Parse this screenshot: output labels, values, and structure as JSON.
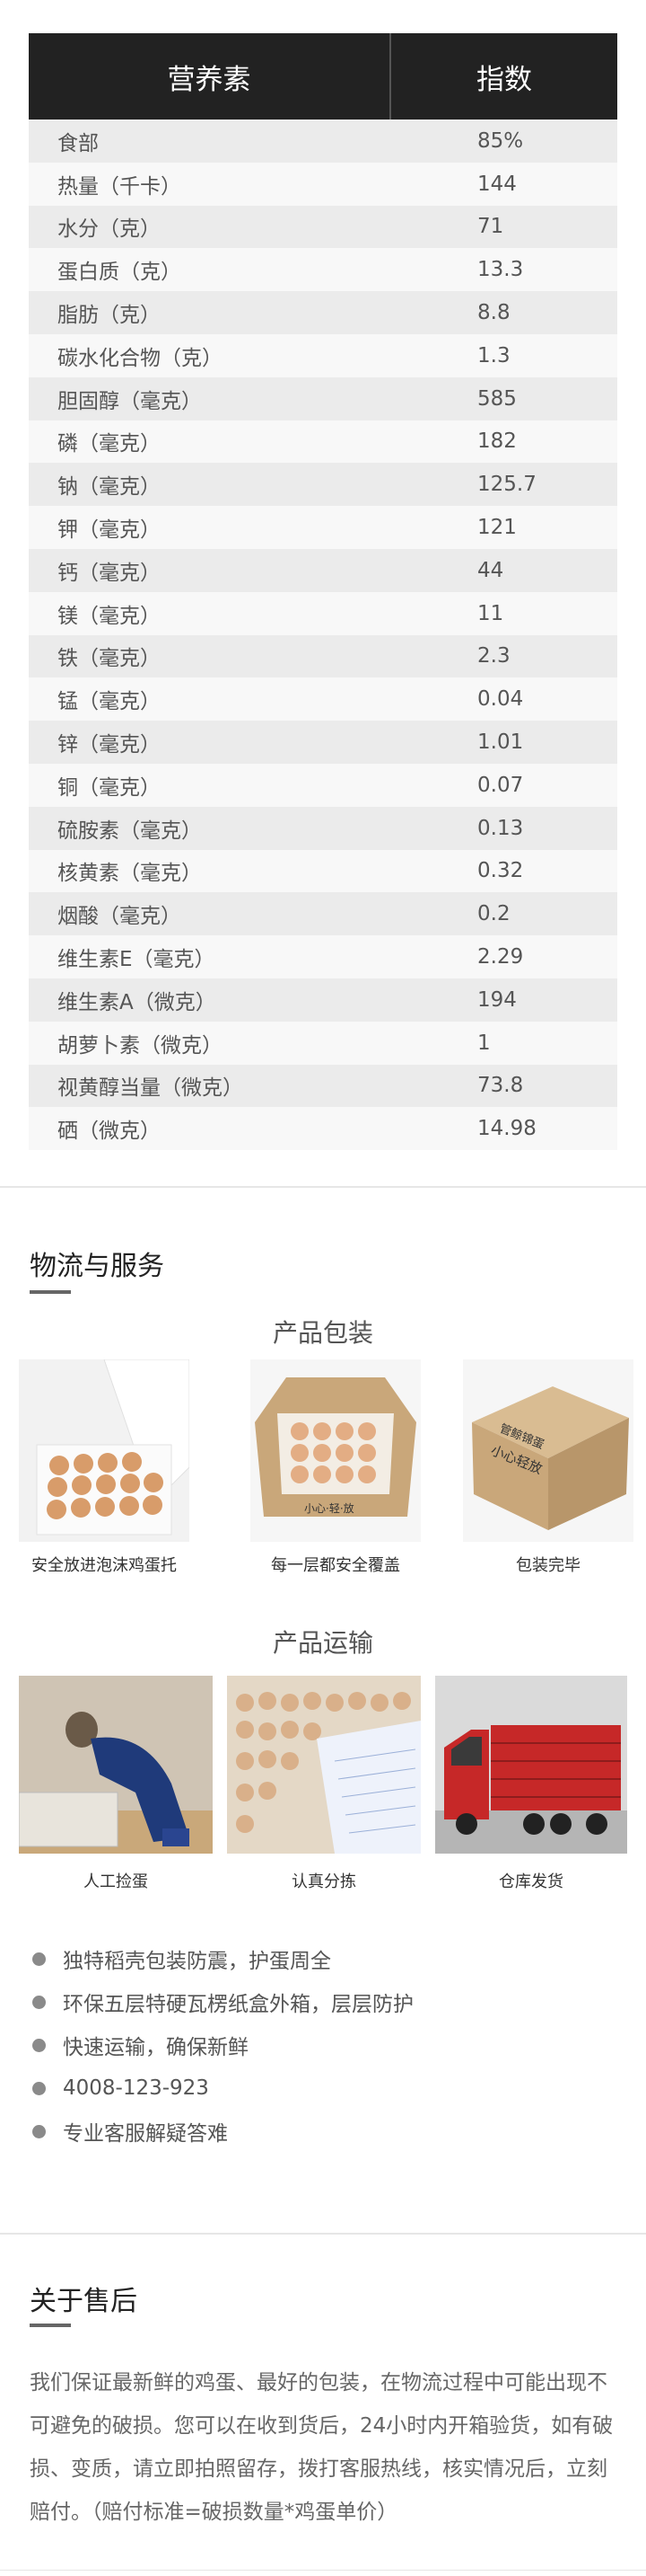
{
  "nutrition": {
    "header": {
      "name": "营养素",
      "value": "指数"
    },
    "rows": [
      {
        "name": "食部",
        "value": "85%"
      },
      {
        "name": "热量（千卡）",
        "value": "144"
      },
      {
        "name": "水分（克）",
        "value": "71"
      },
      {
        "name": "蛋白质（克）",
        "value": "13.3"
      },
      {
        "name": "脂肪（克）",
        "value": "8.8"
      },
      {
        "name": "碳水化合物（克）",
        "value": "1.3"
      },
      {
        "name": "胆固醇（毫克）",
        "value": "585"
      },
      {
        "name": "磷（毫克）",
        "value": "182"
      },
      {
        "name": "钠（毫克）",
        "value": "125.7"
      },
      {
        "name": "钾（毫克）",
        "value": "121"
      },
      {
        "name": "钙（毫克）",
        "value": "44"
      },
      {
        "name": "镁（毫克）",
        "value": "11"
      },
      {
        "name": "铁（毫克）",
        "value": "2.3"
      },
      {
        "name": "锰（毫克）",
        "value": "0.04"
      },
      {
        "name": "锌（毫克）",
        "value": "1.01"
      },
      {
        "name": "铜（毫克）",
        "value": "0.07"
      },
      {
        "name": "硫胺素（毫克）",
        "value": "0.13"
      },
      {
        "name": "核黄素（毫克）",
        "value": "0.32"
      },
      {
        "name": "烟酸（毫克）",
        "value": "0.2"
      },
      {
        "name": "维生素E（毫克）",
        "value": "2.29"
      },
      {
        "name": "维生素A（微克）",
        "value": "194"
      },
      {
        "name": "胡萝卜素（微克）",
        "value": "1"
      },
      {
        "name": "视黄醇当量（微克）",
        "value": "73.8"
      },
      {
        "name": "硒（微克）",
        "value": "14.98"
      }
    ]
  },
  "logistics": {
    "title": "物流与服务",
    "packaging": {
      "title": "产品包装",
      "items": [
        {
          "caption": "安全放进泡沫鸡蛋托",
          "image": "foam-egg-tray"
        },
        {
          "caption": "每一层都安全覆盖",
          "image": "open-carton-eggs"
        },
        {
          "caption": "包装完毕",
          "image": "sealed-carton"
        }
      ],
      "box_print": {
        "line1": "小心轻放",
        "line2": "管鲸锦蛋"
      },
      "box_print_side": "小心·轻·放"
    },
    "transport": {
      "title": "产品运输",
      "items": [
        {
          "caption": "人工捡蛋",
          "image": "worker-picking-eggs"
        },
        {
          "caption": "认真分拣",
          "image": "egg-sorting"
        },
        {
          "caption": "仓库发货",
          "image": "red-truck"
        }
      ]
    },
    "features": [
      "独特稻壳包装防震，护蛋周全",
      "环保五层特硬瓦楞纸盒外箱，层层防护",
      "快速运输，确保新鲜",
      "4008-123-923",
      "专业客服解疑答难"
    ]
  },
  "after_sales": {
    "title": "关于售后",
    "text": "我们保证最新鲜的鸡蛋、最好的包装，在物流过程中可能出现不可避免的破损。您可以在收到货后，24小时内开箱验货，如有破损、变质，请立即拍照留存，拨打客服热线，核实情况后，立刻赔付。（赔付标准=破损数量*鸡蛋单价）"
  },
  "colors": {
    "table_header": "#222222",
    "row_odd": "#ebebeb",
    "row_even": "#f8f8f8",
    "truck": "#c62828",
    "carton": "#c9a77a"
  }
}
